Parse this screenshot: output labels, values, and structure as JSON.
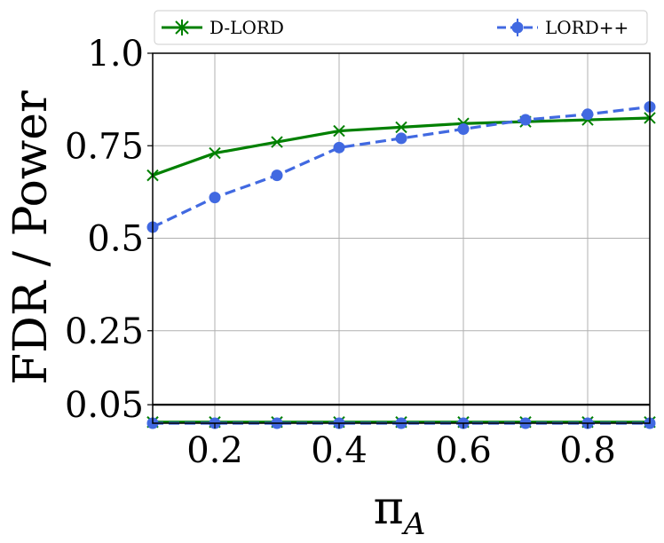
{
  "chart_data": {
    "type": "line",
    "title": "",
    "xlabel": "π",
    "xlabel_sub": "A",
    "ylabel": "FDR / Power",
    "xlim": [
      0.1,
      0.9
    ],
    "ylim": [
      0.0,
      1.0
    ],
    "x_ticks": [
      0.2,
      0.4,
      0.6,
      0.8
    ],
    "x_tick_labels": [
      "0.2",
      "0.4",
      "0.6",
      "0.8"
    ],
    "y_ticks": [
      0.05,
      0.25,
      0.5,
      0.75,
      1.0
    ],
    "y_tick_labels": [
      "0.05",
      "0.25",
      "0.5",
      "0.75",
      "1.0"
    ],
    "grid": true,
    "legend_position": "top",
    "reference_line": {
      "y": 0.05,
      "color": "#000000"
    },
    "x": [
      0.1,
      0.2,
      0.3,
      0.4,
      0.5,
      0.6,
      0.7,
      0.8,
      0.9
    ],
    "series": [
      {
        "name": "D-LORD",
        "role": "power",
        "color": "#008000",
        "marker": "x",
        "linestyle": "solid",
        "values": [
          0.67,
          0.73,
          0.76,
          0.79,
          0.8,
          0.81,
          0.815,
          0.82,
          0.825
        ]
      },
      {
        "name": "LORD++",
        "role": "power",
        "color": "#4169E1",
        "marker": "circle",
        "linestyle": "dashed",
        "values": [
          0.53,
          0.61,
          0.67,
          0.745,
          0.77,
          0.795,
          0.82,
          0.835,
          0.855
        ]
      },
      {
        "name": "D-LORD",
        "role": "fdr",
        "color": "#008000",
        "marker": "x",
        "linestyle": "solid",
        "values": [
          0.003,
          0.003,
          0.003,
          0.003,
          0.003,
          0.003,
          0.003,
          0.003,
          0.003
        ]
      },
      {
        "name": "LORD++",
        "role": "fdr",
        "color": "#4169E1",
        "marker": "circle",
        "linestyle": "dashed",
        "values": [
          0.0,
          0.0,
          0.0,
          0.0,
          0.0,
          0.0,
          0.0,
          0.0,
          0.0
        ]
      }
    ]
  }
}
